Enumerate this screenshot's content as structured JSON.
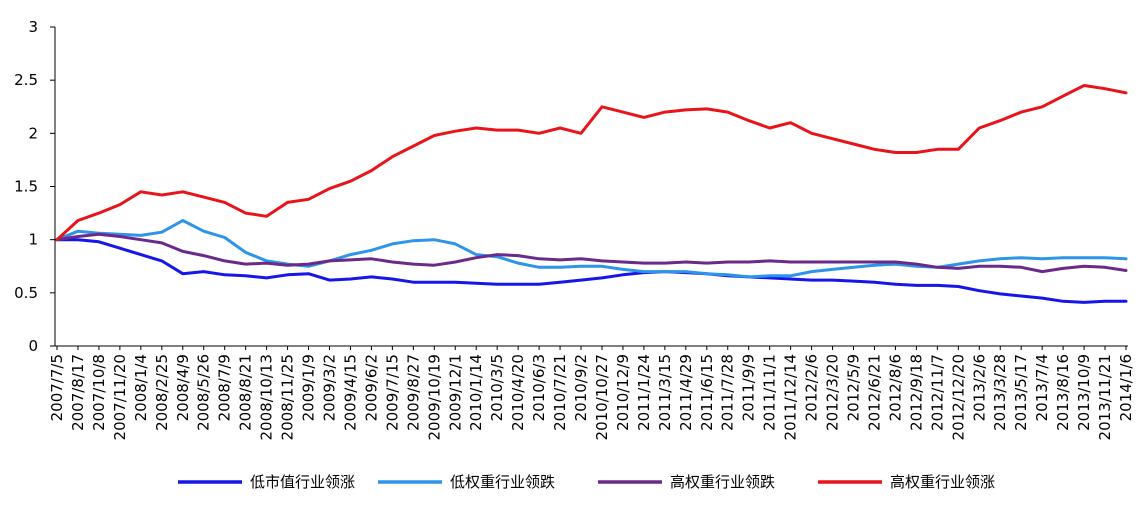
{
  "chart_data": {
    "type": "line",
    "title": "",
    "xlabel": "",
    "ylabel": "",
    "ylim": [
      0,
      3
    ],
    "yticks": [
      "0",
      "0.5",
      "1",
      "1.5",
      "2",
      "2.5",
      "3"
    ],
    "grid": false,
    "legend_position": "bottom",
    "categories": [
      "2007/7/5",
      "2007/8/17",
      "2007/10/8",
      "2007/11/20",
      "2008/1/4",
      "2008/2/25",
      "2008/4/9",
      "2008/5/26",
      "2008/7/9",
      "2008/8/21",
      "2008/10/13",
      "2008/11/25",
      "2009/1/9",
      "2009/3/2",
      "2009/4/15",
      "2009/6/2",
      "2009/7/15",
      "2009/8/27",
      "2009/10/19",
      "2009/12/1",
      "2010/1/14",
      "2010/3/5",
      "2010/4/20",
      "2010/6/3",
      "2010/7/21",
      "2010/9/2",
      "2010/10/27",
      "2010/12/9",
      "2011/1/24",
      "2011/3/15",
      "2011/4/29",
      "2011/6/15",
      "2011/7/28",
      "2011/9/9",
      "2011/11/1",
      "2011/12/14",
      "2012/2/6",
      "2012/3/20",
      "2012/5/9",
      "2012/6/21",
      "2012/8/6",
      "2012/9/18",
      "2012/11/7",
      "2012/12/20",
      "2013/2/6",
      "2013/3/28",
      "2013/5/17",
      "2013/7/4",
      "2013/8/16",
      "2013/10/9",
      "2013/11/21",
      "2014/1/6"
    ],
    "series": [
      {
        "name": "低市值行业领涨",
        "color": "#1616e8",
        "values": [
          1.0,
          1.0,
          0.98,
          0.92,
          0.86,
          0.8,
          0.68,
          0.7,
          0.67,
          0.66,
          0.64,
          0.67,
          0.68,
          0.62,
          0.63,
          0.65,
          0.63,
          0.6,
          0.6,
          0.6,
          0.59,
          0.58,
          0.58,
          0.58,
          0.6,
          0.62,
          0.64,
          0.67,
          0.69,
          0.7,
          0.69,
          0.68,
          0.66,
          0.65,
          0.64,
          0.63,
          0.62,
          0.62,
          0.61,
          0.6,
          0.58,
          0.57,
          0.57,
          0.56,
          0.52,
          0.49,
          0.47,
          0.45,
          0.42,
          0.41,
          0.42,
          0.42
        ]
      },
      {
        "name": "低权重行业领跌",
        "color": "#2e94e8",
        "values": [
          1.0,
          1.08,
          1.06,
          1.05,
          1.04,
          1.07,
          1.18,
          1.08,
          1.02,
          0.88,
          0.8,
          0.77,
          0.75,
          0.8,
          0.86,
          0.9,
          0.96,
          0.99,
          1.0,
          0.96,
          0.86,
          0.84,
          0.78,
          0.74,
          0.74,
          0.75,
          0.75,
          0.72,
          0.7,
          0.7,
          0.7,
          0.68,
          0.67,
          0.65,
          0.66,
          0.66,
          0.7,
          0.72,
          0.74,
          0.76,
          0.77,
          0.75,
          0.74,
          0.77,
          0.8,
          0.82,
          0.83,
          0.82,
          0.83,
          0.83,
          0.83,
          0.82
        ]
      },
      {
        "name": "高权重行业领跌",
        "color": "#6b2a8a",
        "values": [
          1.0,
          1.03,
          1.05,
          1.03,
          1.0,
          0.97,
          0.89,
          0.85,
          0.8,
          0.77,
          0.78,
          0.76,
          0.77,
          0.8,
          0.81,
          0.82,
          0.79,
          0.77,
          0.76,
          0.79,
          0.83,
          0.86,
          0.85,
          0.82,
          0.81,
          0.82,
          0.8,
          0.79,
          0.78,
          0.78,
          0.79,
          0.78,
          0.79,
          0.79,
          0.8,
          0.79,
          0.79,
          0.79,
          0.79,
          0.79,
          0.79,
          0.77,
          0.74,
          0.73,
          0.75,
          0.75,
          0.74,
          0.7,
          0.73,
          0.75,
          0.74,
          0.71
        ]
      },
      {
        "name": "高权重行业领涨",
        "color": "#e8141a",
        "values": [
          1.0,
          1.18,
          1.25,
          1.33,
          1.45,
          1.42,
          1.45,
          1.4,
          1.35,
          1.25,
          1.22,
          1.35,
          1.38,
          1.48,
          1.55,
          1.65,
          1.78,
          1.88,
          1.98,
          2.02,
          2.05,
          2.03,
          2.03,
          2.0,
          2.05,
          2.0,
          2.25,
          2.2,
          2.15,
          2.2,
          2.22,
          2.23,
          2.2,
          2.12,
          2.05,
          2.1,
          2.0,
          1.95,
          1.9,
          1.85,
          1.82,
          1.82,
          1.85,
          1.85,
          2.05,
          2.12,
          2.2,
          2.25,
          2.35,
          2.45,
          2.42,
          2.38
        ]
      }
    ]
  }
}
